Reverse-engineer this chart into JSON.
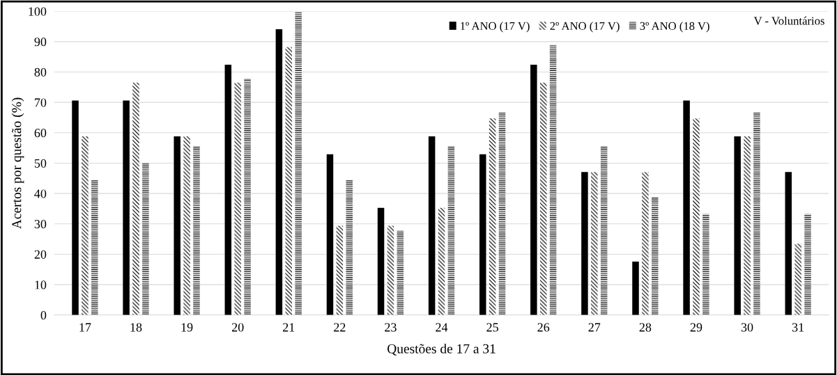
{
  "chart_data": {
    "type": "bar",
    "xlabel": "Questões de 17 a 31",
    "ylabel": "Acertos por questão (%)",
    "categories": [
      "17",
      "18",
      "19",
      "20",
      "21",
      "22",
      "23",
      "24",
      "25",
      "26",
      "27",
      "28",
      "29",
      "30",
      "31"
    ],
    "series": [
      {
        "name": "1º ANO (17 V)",
        "color": "#000000",
        "values": [
          70.6,
          70.6,
          58.8,
          82.4,
          94.1,
          52.9,
          35.3,
          58.8,
          52.9,
          82.4,
          47.1,
          17.6,
          70.6,
          58.8,
          47.1
        ]
      },
      {
        "name": "2º ANO (17 V)",
        "color": "#000000",
        "values": [
          58.8,
          76.5,
          58.8,
          76.5,
          88.2,
          29.4,
          29.4,
          35.3,
          64.7,
          76.5,
          47.1,
          47.1,
          64.7,
          58.8,
          23.5
        ]
      },
      {
        "name": "3º ANO (18 V)",
        "color": "#000000",
        "values": [
          44.4,
          50.0,
          55.6,
          77.8,
          100,
          44.4,
          27.8,
          55.6,
          66.7,
          88.9,
          55.6,
          38.9,
          33.3,
          66.7,
          33.3
        ]
      }
    ],
    "ylim": [
      0,
      100
    ],
    "yticks": [
      0,
      10,
      20,
      30,
      40,
      50,
      60,
      70,
      80,
      90,
      100
    ],
    "grid": "y",
    "legend": "top right",
    "annotations": [
      "V - Voluntários"
    ]
  }
}
